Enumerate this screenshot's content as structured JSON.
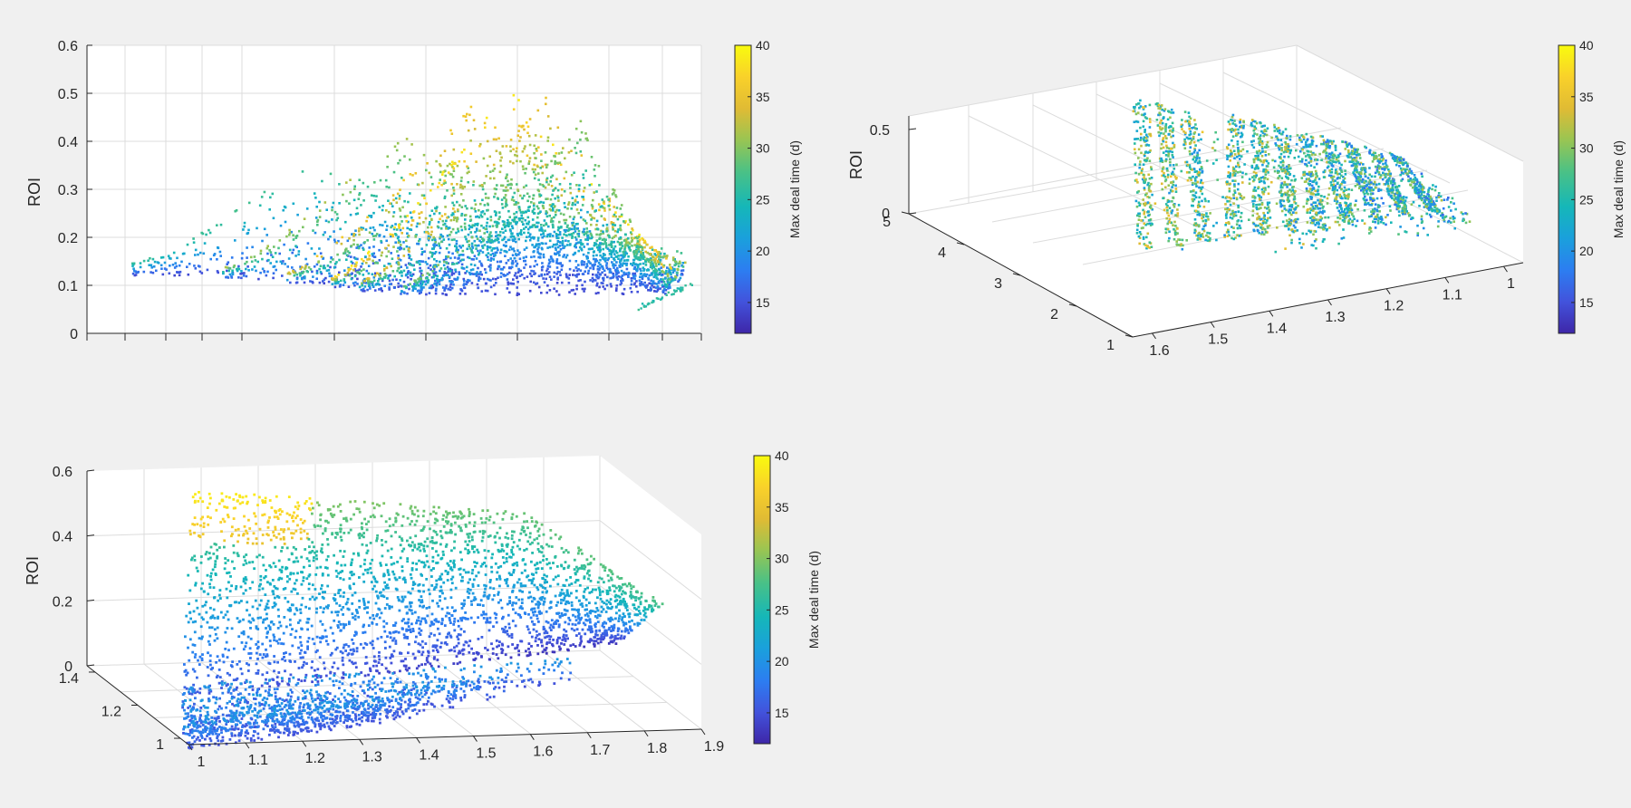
{
  "figure": {
    "background": "#f0f0f0"
  },
  "colormap": {
    "name": "parula",
    "stops": [
      "#3e26a8",
      "#4253dc",
      "#2c7ef1",
      "#1aa0dc",
      "#15b7b8",
      "#4ac186",
      "#98c553",
      "#e0bb34",
      "#f9d12a",
      "#f9fb0e"
    ]
  },
  "chart_data": [
    {
      "type": "scatter",
      "id": "subplot-top-left",
      "view": "3d-scatter-front-elevation",
      "ylabel": "ROI",
      "zlim": [
        0,
        0.6
      ],
      "z_ticks": [
        "0",
        "0.1",
        "0.2",
        "0.3",
        "0.4",
        "0.5",
        "0.6"
      ],
      "x_ticks_labeled": false,
      "grid": true,
      "colorbar": {
        "label": "Max deal time (d)",
        "range": [
          12,
          40
        ],
        "ticks": [
          "15",
          "20",
          "25",
          "30",
          "35",
          "40"
        ]
      },
      "ridges": [
        {
          "roi_start": 0.15,
          "roi_peak": 0.36,
          "roi_end": 0.17,
          "deal_time_max": 26
        },
        {
          "roi_start": 0.14,
          "roi_peak": 0.43,
          "roi_end": 0.15,
          "deal_time_max": 31
        },
        {
          "roi_start": 0.13,
          "roi_peak": 0.48,
          "roi_end": 0.14,
          "deal_time_max": 35
        },
        {
          "roi_start": 0.12,
          "roi_peak": 0.52,
          "roi_end": 0.13,
          "deal_time_max": 38
        },
        {
          "roi_start": 0.11,
          "roi_peak": 0.5,
          "roi_end": 0.12,
          "deal_time_max": 34
        },
        {
          "roi_start": 0.1,
          "roi_peak": 0.45,
          "roi_end": 0.11,
          "deal_time_max": 29
        }
      ]
    },
    {
      "type": "scatter",
      "id": "subplot-top-right",
      "view": "3d-scatter-oblique",
      "zlabel": "ROI",
      "zlim": [
        0,
        0.55
      ],
      "z_ticks": [
        "0",
        "0.5"
      ],
      "x_ticks": [
        "1.6",
        "1.5",
        "1.4",
        "1.3",
        "1.2",
        "1.1",
        "1"
      ],
      "y_ticks": [
        "1",
        "2",
        "3",
        "4",
        "5"
      ],
      "grid": true,
      "colorbar": {
        "label": "Max deal time (d)",
        "range": [
          12,
          40
        ],
        "ticks": [
          "15",
          "20",
          "25",
          "30",
          "35",
          "40"
        ]
      }
    },
    {
      "type": "scatter",
      "id": "subplot-bottom-left",
      "view": "3d-scatter-oblique-low",
      "zlabel": "ROI",
      "zlim": [
        0,
        0.6
      ],
      "z_ticks": [
        "0",
        "0.2",
        "0.4",
        "0.6"
      ],
      "x_ticks": [
        "1",
        "1.1",
        "1.2",
        "1.3",
        "1.4",
        "1.5",
        "1.6",
        "1.7",
        "1.8",
        "1.9"
      ],
      "y_ticks": [
        "1",
        "1.2",
        "1.4"
      ],
      "grid": true,
      "colorbar": {
        "label": "Max deal time (d)",
        "range": [
          12,
          40
        ],
        "ticks": [
          "15",
          "20",
          "25",
          "30",
          "35",
          "40"
        ]
      }
    }
  ]
}
